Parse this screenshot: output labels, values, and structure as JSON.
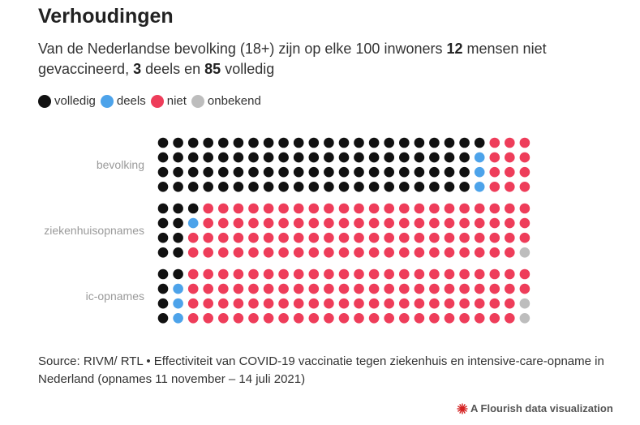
{
  "title": "Verhoudingen",
  "subtitle": {
    "part1": "Van de Nederlandse bevolking (18+) zijn op elke 100 inwoners ",
    "niet_count": "12",
    "part2": " mensen niet gevaccineerd, ",
    "deels_count": "3",
    "part3": " deels en ",
    "volledig_count": "85",
    "part4": " volledig"
  },
  "legend": [
    {
      "key": "volledig",
      "label": "volledig",
      "color": "#111111"
    },
    {
      "key": "deels",
      "label": "deels",
      "color": "#4da3ea"
    },
    {
      "key": "niet",
      "label": "niet",
      "color": "#ee3d5a"
    },
    {
      "key": "onbekend",
      "label": "onbekend",
      "color": "#bdbdbd"
    }
  ],
  "chart_data": {
    "type": "waffle",
    "units_per_group": 100,
    "categories": [
      "volledig",
      "deels",
      "niet",
      "onbekend"
    ],
    "groups": [
      {
        "label": "bevolking",
        "values": {
          "volledig": 85,
          "deels": 3,
          "niet": 12,
          "onbekend": 0
        }
      },
      {
        "label": "ziekenhuisopnames",
        "values": {
          "volledig": 9,
          "deels": 1,
          "niet": 89,
          "onbekend": 1
        }
      },
      {
        "label": "ic-opnames",
        "values": {
          "volledig": 5,
          "deels": 3,
          "niet": 90,
          "onbekend": 2
        }
      }
    ]
  },
  "source": "Source: RIVM/ RTL • Effectiviteit van COVID-19 vaccinatie tegen ziekenhuis en intensive-care-opname in Nederland (opnames 11 november – 14 juli 2021)",
  "credit": "A Flourish data visualization",
  "credit_icon": "flourish-logo-icon",
  "colors": {
    "credit_icon": "#d42020"
  }
}
